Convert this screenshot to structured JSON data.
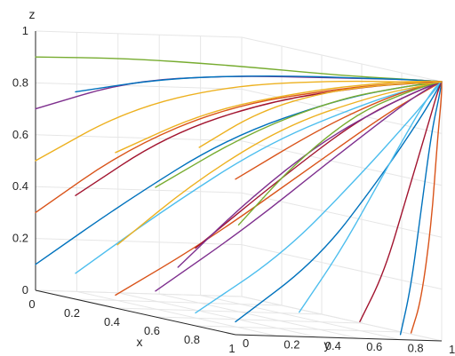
{
  "chart_data": {
    "type": "line",
    "title": "",
    "projection": "3d",
    "xlabel": "x",
    "ylabel": "y",
    "zlabel": "z",
    "xlim": [
      0,
      1
    ],
    "ylim": [
      0,
      1
    ],
    "zlim": [
      0,
      1
    ],
    "x_ticks": [
      "0",
      "0.2",
      "0.4",
      "0.6",
      "0.8",
      "1"
    ],
    "y_ticks": [
      "0",
      "0.2",
      "0.4",
      "0.6",
      "0.8",
      "1"
    ],
    "z_ticks": [
      "0",
      "0.2",
      "0.4",
      "0.6",
      "0.8",
      "1"
    ],
    "grid": true,
    "legend": "none",
    "colors": [
      "#0072BD",
      "#D95319",
      "#EDB120",
      "#7E2F8E",
      "#77AC30",
      "#4DBEEE",
      "#A2142F"
    ],
    "convergence_point": [
      1,
      1,
      1
    ],
    "trajectory_starts_note": "",
    "series": [
      {
        "x": [
          0.0,
          0.3,
          0.6,
          0.85,
          0.97,
          1.0
        ],
        "y": [
          0.0,
          0.15,
          0.35,
          0.65,
          0.9,
          1.0
        ],
        "z": [
          0.1,
          0.4,
          0.7,
          0.9,
          0.98,
          1.0
        ]
      },
      {
        "x": [
          0.0,
          0.3,
          0.6,
          0.85,
          0.97,
          1.0
        ],
        "y": [
          0.0,
          0.15,
          0.35,
          0.65,
          0.9,
          1.0
        ],
        "z": [
          0.3,
          0.6,
          0.82,
          0.94,
          0.99,
          1.0
        ]
      },
      {
        "x": [
          0.0,
          0.3,
          0.6,
          0.85,
          0.97,
          1.0
        ],
        "y": [
          0.0,
          0.15,
          0.35,
          0.65,
          0.9,
          1.0
        ],
        "z": [
          0.5,
          0.75,
          0.9,
          0.97,
          0.99,
          1.0
        ]
      },
      {
        "x": [
          0.0,
          0.3,
          0.6,
          0.85,
          0.97,
          1.0
        ],
        "y": [
          0.0,
          0.15,
          0.35,
          0.65,
          0.9,
          1.0
        ],
        "z": [
          0.7,
          0.86,
          0.94,
          0.98,
          1.0,
          1.0
        ]
      },
      {
        "x": [
          0.0,
          0.3,
          0.6,
          0.85,
          0.97,
          1.0
        ],
        "y": [
          0.0,
          0.15,
          0.35,
          0.65,
          0.9,
          1.0
        ],
        "z": [
          0.9,
          0.95,
          0.98,
          0.99,
          1.0,
          1.0
        ]
      },
      {
        "x": [
          0.2,
          0.45,
          0.7,
          0.9,
          0.98,
          1.0
        ],
        "y": [
          0.0,
          0.2,
          0.45,
          0.75,
          0.93,
          1.0
        ],
        "z": [
          0.1,
          0.4,
          0.7,
          0.9,
          0.98,
          1.0
        ]
      },
      {
        "x": [
          0.2,
          0.45,
          0.7,
          0.9,
          0.98,
          1.0
        ],
        "y": [
          0.0,
          0.2,
          0.45,
          0.75,
          0.93,
          1.0
        ],
        "z": [
          0.4,
          0.68,
          0.86,
          0.96,
          0.99,
          1.0
        ]
      },
      {
        "x": [
          0.2,
          0.45,
          0.7,
          0.9,
          0.98,
          1.0
        ],
        "y": [
          0.0,
          0.2,
          0.45,
          0.75,
          0.93,
          1.0
        ],
        "z": [
          0.8,
          0.9,
          0.96,
          0.99,
          1.0,
          1.0
        ]
      },
      {
        "x": [
          0.4,
          0.6,
          0.8,
          0.93,
          0.99,
          1.0
        ],
        "y": [
          0.0,
          0.25,
          0.55,
          0.8,
          0.95,
          1.0
        ],
        "z": [
          0.05,
          0.3,
          0.62,
          0.86,
          0.97,
          1.0
        ]
      },
      {
        "x": [
          0.4,
          0.6,
          0.8,
          0.93,
          0.99,
          1.0
        ],
        "y": [
          0.0,
          0.25,
          0.55,
          0.8,
          0.95,
          1.0
        ],
        "z": [
          0.6,
          0.8,
          0.92,
          0.98,
          1.0,
          1.0
        ]
      },
      {
        "x": [
          0.6,
          0.75,
          0.88,
          0.96,
          0.99,
          1.0
        ],
        "y": [
          0.0,
          0.3,
          0.6,
          0.85,
          0.96,
          1.0
        ],
        "z": [
          0.1,
          0.38,
          0.68,
          0.9,
          0.98,
          1.0
        ]
      },
      {
        "x": [
          0.6,
          0.75,
          0.88,
          0.96,
          0.99,
          1.0
        ],
        "y": [
          0.0,
          0.3,
          0.6,
          0.85,
          0.96,
          1.0
        ],
        "z": [
          0.5,
          0.74,
          0.9,
          0.97,
          0.99,
          1.0
        ]
      },
      {
        "x": [
          0.8,
          0.88,
          0.95,
          0.98,
          1.0,
          1.0
        ],
        "y": [
          0.0,
          0.35,
          0.65,
          0.88,
          0.97,
          1.0
        ],
        "z": [
          0.05,
          0.3,
          0.62,
          0.86,
          0.97,
          1.0
        ]
      },
      {
        "x": [
          0.8,
          0.88,
          0.95,
          0.98,
          1.0,
          1.0
        ],
        "y": [
          0.0,
          0.35,
          0.65,
          0.88,
          0.97,
          1.0
        ],
        "z": [
          0.3,
          0.6,
          0.84,
          0.95,
          0.99,
          1.0
        ]
      },
      {
        "x": [
          1.0,
          1.0,
          1.0,
          1.0,
          1.0,
          1.0
        ],
        "y": [
          0.0,
          0.4,
          0.7,
          0.9,
          0.98,
          1.0
        ],
        "z": [
          0.05,
          0.3,
          0.62,
          0.86,
          0.97,
          1.0
        ]
      },
      {
        "x": [
          1.0,
          1.0,
          1.0,
          1.0,
          1.0,
          1.0
        ],
        "y": [
          0.0,
          0.4,
          0.7,
          0.9,
          0.98,
          1.0
        ],
        "z": [
          0.6,
          0.8,
          0.92,
          0.98,
          1.0,
          1.0
        ]
      },
      {
        "x": [
          0.1,
          0.35,
          0.62,
          0.86,
          0.97,
          1.0
        ],
        "y": [
          0.3,
          0.45,
          0.62,
          0.82,
          0.95,
          1.0
        ],
        "z": [
          0.2,
          0.5,
          0.76,
          0.92,
          0.98,
          1.0
        ]
      },
      {
        "x": [
          0.3,
          0.5,
          0.72,
          0.9,
          0.98,
          1.0
        ],
        "y": [
          0.4,
          0.55,
          0.7,
          0.86,
          0.96,
          1.0
        ],
        "z": [
          0.15,
          0.45,
          0.72,
          0.9,
          0.98,
          1.0
        ]
      },
      {
        "x": [
          0.5,
          0.66,
          0.82,
          0.94,
          0.99,
          1.0
        ],
        "y": [
          0.5,
          0.62,
          0.76,
          0.9,
          0.97,
          1.0
        ],
        "z": [
          0.35,
          0.62,
          0.84,
          0.95,
          0.99,
          1.0
        ]
      },
      {
        "x": [
          0.7,
          0.8,
          0.9,
          0.96,
          0.99,
          1.0
        ],
        "y": [
          0.6,
          0.7,
          0.8,
          0.91,
          0.97,
          1.0
        ],
        "z": [
          0.05,
          0.3,
          0.6,
          0.85,
          0.97,
          1.0
        ]
      },
      {
        "x": [
          0.9,
          0.94,
          0.97,
          0.99,
          1.0,
          1.0
        ],
        "y": [
          0.7,
          0.78,
          0.86,
          0.94,
          0.98,
          1.0
        ],
        "z": [
          0.05,
          0.25,
          0.55,
          0.82,
          0.96,
          1.0
        ]
      },
      {
        "x": [
          1.0,
          1.0,
          1.0,
          1.0,
          1.0,
          1.0
        ],
        "y": [
          0.8,
          0.85,
          0.9,
          0.95,
          0.99,
          1.0
        ],
        "z": [
          0.02,
          0.2,
          0.5,
          0.8,
          0.95,
          1.0
        ]
      },
      {
        "x": [
          0.95,
          0.97,
          0.99,
          1.0,
          1.0,
          1.0
        ],
        "y": [
          0.9,
          0.93,
          0.96,
          0.98,
          1.0,
          1.0
        ],
        "z": [
          0.02,
          0.15,
          0.45,
          0.78,
          0.95,
          1.0
        ]
      },
      {
        "x": [
          0.2,
          0.42,
          0.66,
          0.88,
          0.98,
          1.0
        ],
        "y": [
          0.6,
          0.68,
          0.78,
          0.9,
          0.97,
          1.0
        ],
        "z": [
          0.6,
          0.78,
          0.9,
          0.97,
          0.99,
          1.0
        ]
      }
    ]
  }
}
